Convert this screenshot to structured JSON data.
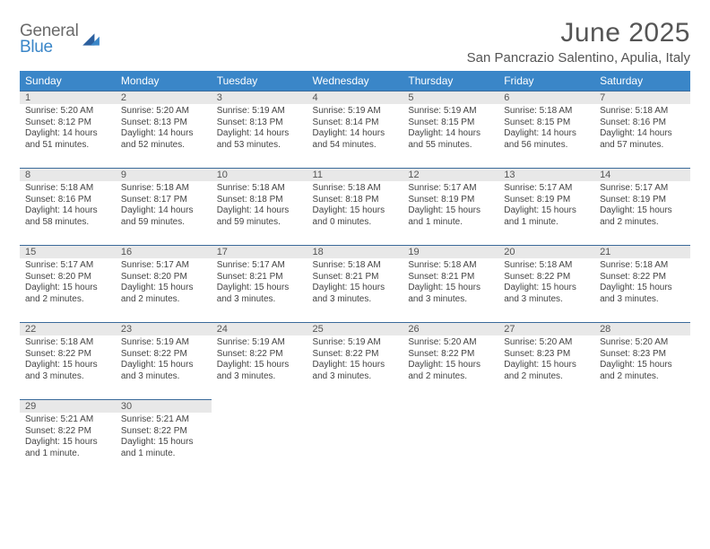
{
  "logo": {
    "line1": "General",
    "line2": "Blue"
  },
  "title": "June 2025",
  "location": "San Pancrazio Salentino, Apulia, Italy",
  "dayHeaders": [
    "Sunday",
    "Monday",
    "Tuesday",
    "Wednesday",
    "Thursday",
    "Friday",
    "Saturday"
  ],
  "colors": {
    "header_bg": "#3a86c8",
    "header_text": "#ffffff",
    "daynum_bg": "#e8e8e8",
    "cell_border": "#3a6a9a",
    "text": "#444444",
    "title_text": "#555555",
    "logo_gray": "#6a6a6a",
    "logo_blue": "#3a86c8",
    "page_bg": "#ffffff"
  },
  "fonts": {
    "title_size_pt": 22,
    "location_size_pt": 11,
    "header_size_pt": 9,
    "daynum_size_pt": 8,
    "body_size_pt": 7.5
  },
  "weeks": [
    [
      {
        "n": "1",
        "sunrise": "5:20 AM",
        "sunset": "8:12 PM",
        "daylight": "14 hours and 51 minutes."
      },
      {
        "n": "2",
        "sunrise": "5:20 AM",
        "sunset": "8:13 PM",
        "daylight": "14 hours and 52 minutes."
      },
      {
        "n": "3",
        "sunrise": "5:19 AM",
        "sunset": "8:13 PM",
        "daylight": "14 hours and 53 minutes."
      },
      {
        "n": "4",
        "sunrise": "5:19 AM",
        "sunset": "8:14 PM",
        "daylight": "14 hours and 54 minutes."
      },
      {
        "n": "5",
        "sunrise": "5:19 AM",
        "sunset": "8:15 PM",
        "daylight": "14 hours and 55 minutes."
      },
      {
        "n": "6",
        "sunrise": "5:18 AM",
        "sunset": "8:15 PM",
        "daylight": "14 hours and 56 minutes."
      },
      {
        "n": "7",
        "sunrise": "5:18 AM",
        "sunset": "8:16 PM",
        "daylight": "14 hours and 57 minutes."
      }
    ],
    [
      {
        "n": "8",
        "sunrise": "5:18 AM",
        "sunset": "8:16 PM",
        "daylight": "14 hours and 58 minutes."
      },
      {
        "n": "9",
        "sunrise": "5:18 AM",
        "sunset": "8:17 PM",
        "daylight": "14 hours and 59 minutes."
      },
      {
        "n": "10",
        "sunrise": "5:18 AM",
        "sunset": "8:18 PM",
        "daylight": "14 hours and 59 minutes."
      },
      {
        "n": "11",
        "sunrise": "5:18 AM",
        "sunset": "8:18 PM",
        "daylight": "15 hours and 0 minutes."
      },
      {
        "n": "12",
        "sunrise": "5:17 AM",
        "sunset": "8:19 PM",
        "daylight": "15 hours and 1 minute."
      },
      {
        "n": "13",
        "sunrise": "5:17 AM",
        "sunset": "8:19 PM",
        "daylight": "15 hours and 1 minute."
      },
      {
        "n": "14",
        "sunrise": "5:17 AM",
        "sunset": "8:19 PM",
        "daylight": "15 hours and 2 minutes."
      }
    ],
    [
      {
        "n": "15",
        "sunrise": "5:17 AM",
        "sunset": "8:20 PM",
        "daylight": "15 hours and 2 minutes."
      },
      {
        "n": "16",
        "sunrise": "5:17 AM",
        "sunset": "8:20 PM",
        "daylight": "15 hours and 2 minutes."
      },
      {
        "n": "17",
        "sunrise": "5:17 AM",
        "sunset": "8:21 PM",
        "daylight": "15 hours and 3 minutes."
      },
      {
        "n": "18",
        "sunrise": "5:18 AM",
        "sunset": "8:21 PM",
        "daylight": "15 hours and 3 minutes."
      },
      {
        "n": "19",
        "sunrise": "5:18 AM",
        "sunset": "8:21 PM",
        "daylight": "15 hours and 3 minutes."
      },
      {
        "n": "20",
        "sunrise": "5:18 AM",
        "sunset": "8:22 PM",
        "daylight": "15 hours and 3 minutes."
      },
      {
        "n": "21",
        "sunrise": "5:18 AM",
        "sunset": "8:22 PM",
        "daylight": "15 hours and 3 minutes."
      }
    ],
    [
      {
        "n": "22",
        "sunrise": "5:18 AM",
        "sunset": "8:22 PM",
        "daylight": "15 hours and 3 minutes."
      },
      {
        "n": "23",
        "sunrise": "5:19 AM",
        "sunset": "8:22 PM",
        "daylight": "15 hours and 3 minutes."
      },
      {
        "n": "24",
        "sunrise": "5:19 AM",
        "sunset": "8:22 PM",
        "daylight": "15 hours and 3 minutes."
      },
      {
        "n": "25",
        "sunrise": "5:19 AM",
        "sunset": "8:22 PM",
        "daylight": "15 hours and 3 minutes."
      },
      {
        "n": "26",
        "sunrise": "5:20 AM",
        "sunset": "8:22 PM",
        "daylight": "15 hours and 2 minutes."
      },
      {
        "n": "27",
        "sunrise": "5:20 AM",
        "sunset": "8:23 PM",
        "daylight": "15 hours and 2 minutes."
      },
      {
        "n": "28",
        "sunrise": "5:20 AM",
        "sunset": "8:23 PM",
        "daylight": "15 hours and 2 minutes."
      }
    ],
    [
      {
        "n": "29",
        "sunrise": "5:21 AM",
        "sunset": "8:22 PM",
        "daylight": "15 hours and 1 minute."
      },
      {
        "n": "30",
        "sunrise": "5:21 AM",
        "sunset": "8:22 PM",
        "daylight": "15 hours and 1 minute."
      },
      null,
      null,
      null,
      null,
      null
    ]
  ],
  "labels": {
    "sunrise": "Sunrise:",
    "sunset": "Sunset:",
    "daylight": "Daylight:"
  }
}
